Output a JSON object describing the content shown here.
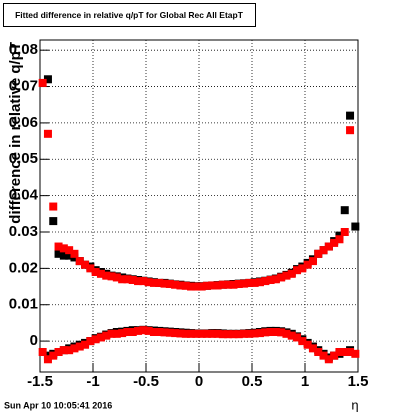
{
  "chart_data": {
    "type": "scatter",
    "title": "Fitted difference in relative q/pT for Global Rec All EtapT",
    "y_label": "difference in relative q/pT",
    "x_label": "η",
    "timestamp": "Sun Apr 10 10:05:41 2016",
    "xlim": [
      -1.5,
      1.5
    ],
    "ylim": [
      -0.0085,
      0.0828
    ],
    "xticks": [
      -1.5,
      -1,
      -0.5,
      0,
      0.5,
      1,
      1.5
    ],
    "yticks": [
      0,
      0.01,
      0.02,
      0.03,
      0.04,
      0.05,
      0.06,
      0.07,
      0.08
    ],
    "grid": true,
    "x": [
      -1.475,
      -1.425,
      -1.375,
      -1.325,
      -1.275,
      -1.225,
      -1.175,
      -1.125,
      -1.075,
      -1.025,
      -0.975,
      -0.925,
      -0.875,
      -0.825,
      -0.775,
      -0.725,
      -0.675,
      -0.625,
      -0.575,
      -0.525,
      -0.475,
      -0.425,
      -0.375,
      -0.325,
      -0.275,
      -0.225,
      -0.175,
      -0.125,
      -0.075,
      -0.025,
      0.025,
      0.075,
      0.125,
      0.175,
      0.225,
      0.275,
      0.325,
      0.375,
      0.425,
      0.475,
      0.525,
      0.575,
      0.625,
      0.675,
      0.725,
      0.775,
      0.825,
      0.875,
      0.925,
      0.975,
      1.025,
      1.075,
      1.125,
      1.175,
      1.225,
      1.275,
      1.325,
      1.375,
      1.425,
      1.475
    ],
    "series": [
      {
        "color": "#000000",
        "values": [
          null,
          0.072,
          0.033,
          0.024,
          0.0235,
          0.0235,
          0.023,
          0.022,
          0.021,
          0.0205,
          0.0195,
          0.019,
          0.0185,
          0.018,
          0.0178,
          0.0175,
          0.0172,
          0.017,
          0.0168,
          0.0166,
          0.0164,
          0.0162,
          0.016,
          0.016,
          0.0158,
          0.0156,
          0.0155,
          0.0153,
          0.0152,
          0.0151,
          0.0151,
          0.0152,
          0.0153,
          0.0154,
          0.0155,
          0.0156,
          0.0157,
          0.0158,
          0.0159,
          0.016,
          0.0162,
          0.0164,
          0.0166,
          0.0169,
          0.0172,
          0.0177,
          0.0182,
          0.0188,
          0.0198,
          0.0205,
          0.0215,
          0.0225,
          0.024,
          0.025,
          0.026,
          0.0275,
          0.029,
          0.036,
          0.062,
          0.0315
        ]
      },
      {
        "color": "#ff0000",
        "values": [
          0.071,
          0.057,
          0.037,
          0.026,
          0.0255,
          0.025,
          0.024,
          0.022,
          0.021,
          0.02,
          0.019,
          0.0185,
          0.018,
          0.0178,
          0.0175,
          0.017,
          0.017,
          0.0168,
          0.0165,
          0.0165,
          0.0162,
          0.016,
          0.016,
          0.0158,
          0.0157,
          0.0155,
          0.0153,
          0.0152,
          0.015,
          0.015,
          0.015,
          0.0152,
          0.0153,
          0.0153,
          0.0155,
          0.0155,
          0.0155,
          0.0157,
          0.0158,
          0.016,
          0.016,
          0.0162,
          0.0165,
          0.0168,
          0.017,
          0.0175,
          0.018,
          0.0185,
          0.0195,
          0.02,
          0.021,
          0.022,
          0.024,
          0.025,
          0.026,
          0.027,
          0.028,
          0.03,
          0.058,
          null
        ]
      },
      {
        "color": "#000000",
        "values": [
          null,
          -0.004,
          -0.0035,
          -0.003,
          -0.0025,
          -0.002,
          -0.0015,
          -0.001,
          -0.0005,
          0.0,
          0.0008,
          0.0012,
          0.0018,
          0.0022,
          0.0025,
          0.0026,
          0.0028,
          0.003,
          0.003,
          0.0031,
          0.003,
          0.0029,
          0.0028,
          0.0027,
          0.0026,
          0.0025,
          0.0024,
          0.0023,
          0.0022,
          0.0021,
          0.0021,
          0.0021,
          0.0022,
          0.0022,
          0.0021,
          0.002,
          0.002,
          0.002,
          0.0021,
          0.0022,
          0.0023,
          0.0025,
          0.0027,
          0.0028,
          0.0028,
          0.0027,
          0.0024,
          0.002,
          0.0013,
          0.0005,
          -0.0005,
          -0.0015,
          -0.0025,
          -0.0035,
          -0.0045,
          -0.004,
          -0.0035,
          -0.003,
          -0.0025,
          null
        ]
      },
      {
        "color": "#ff0000",
        "values": [
          -0.003,
          -0.005,
          -0.004,
          -0.003,
          -0.0025,
          -0.0025,
          -0.002,
          -0.0015,
          -0.001,
          0.0,
          0.0005,
          0.001,
          0.0015,
          0.002,
          0.002,
          0.0022,
          0.0025,
          0.0025,
          0.0028,
          0.003,
          0.0028,
          0.0025,
          0.0025,
          0.0024,
          0.0023,
          0.0022,
          0.0021,
          0.002,
          0.002,
          0.002,
          0.002,
          0.002,
          0.002,
          0.002,
          0.0019,
          0.0019,
          0.0019,
          0.0019,
          0.002,
          0.002,
          0.0021,
          0.0022,
          0.0024,
          0.0025,
          0.0025,
          0.0024,
          0.002,
          0.0015,
          0.001,
          0.0,
          -0.001,
          -0.002,
          -0.003,
          -0.004,
          -0.005,
          -0.004,
          -0.003,
          -0.003,
          -0.003,
          -0.0035
        ]
      }
    ]
  }
}
